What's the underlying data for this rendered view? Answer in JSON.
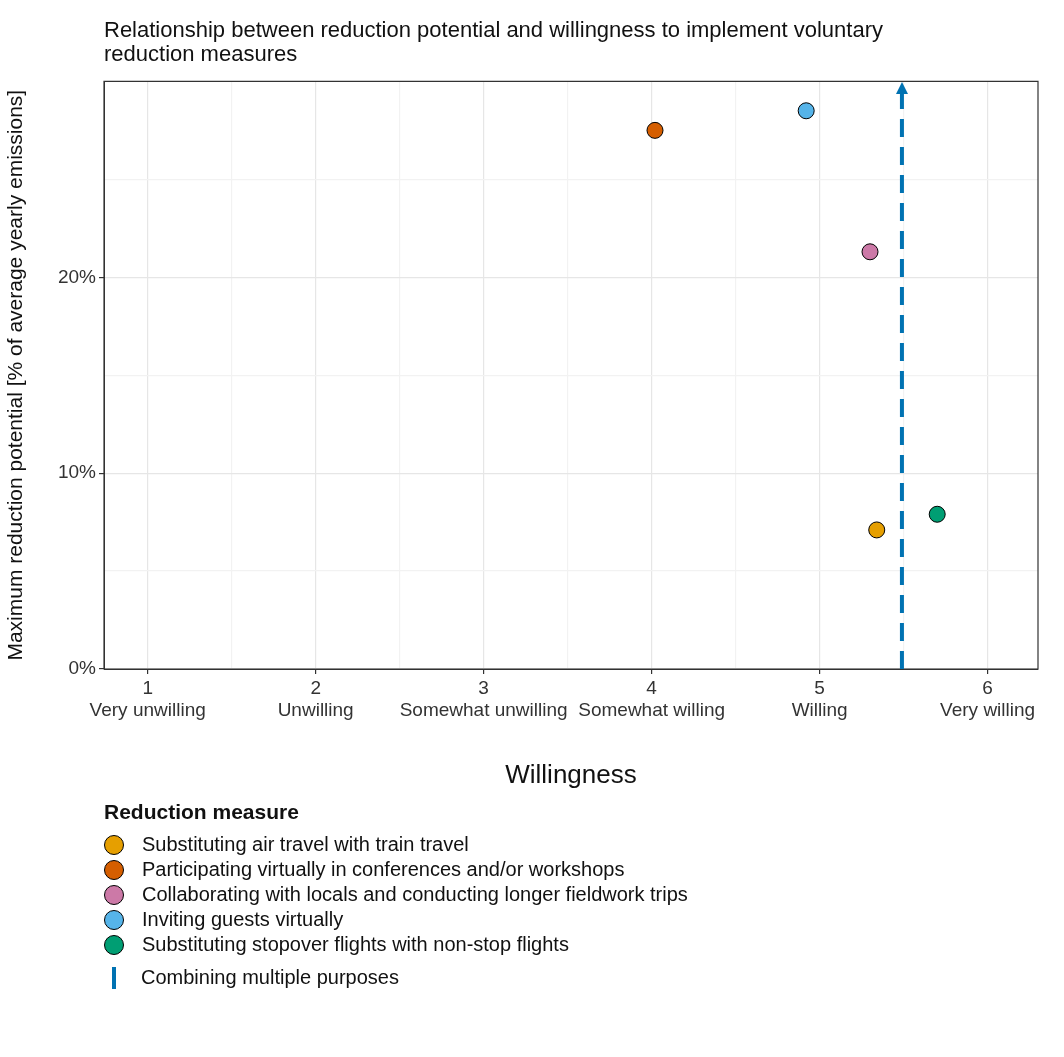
{
  "chart_data": {
    "type": "scatter",
    "title": "Relationship between reduction potential and willingness to implement voluntary reduction measures",
    "xlabel": "Willingness",
    "ylabel": "Maximum reduction potential [% of average yearly emissions]",
    "legend_title": "Reduction measure",
    "legend": "bottom",
    "grid": true,
    "marker": "circle",
    "xlim": [
      0.74,
      6.3
    ],
    "xticks": [
      {
        "value": 1,
        "label": "1\nVery unwilling"
      },
      {
        "value": 1.5,
        "label": null
      },
      {
        "value": 2,
        "label": "2\nUnwilling"
      },
      {
        "value": 2.5,
        "label": null
      },
      {
        "value": 3,
        "label": "3\nSomewhat unwilling"
      },
      {
        "value": 3.5,
        "label": null
      },
      {
        "value": 4,
        "label": "4\nSomewhat willing"
      },
      {
        "value": 4.5,
        "label": null
      },
      {
        "value": 5,
        "label": "5\nWilling"
      },
      {
        "value": 5.5,
        "label": null
      },
      {
        "value": 6,
        "label": "6\nVery willing"
      }
    ],
    "ylim": [
      0,
      30
    ],
    "yticks": [
      {
        "value": 0,
        "label": "0%"
      },
      {
        "value": 5,
        "label": null
      },
      {
        "value": 10,
        "label": "10%"
      },
      {
        "value": 15,
        "label": null
      },
      {
        "value": 20,
        "label": "20%"
      },
      {
        "value": 25,
        "label": null
      }
    ],
    "series": [
      {
        "name": "Substituting air travel with train travel",
        "color": "#e69f00",
        "x": [
          5.34
        ],
        "values": [
          7.1
        ]
      },
      {
        "name": "Participating virtually in conferences and/or workshops",
        "color": "#d55e00",
        "x": [
          4.02
        ],
        "values": [
          27.5
        ]
      },
      {
        "name": "Collaborating with locals and conducting longer fieldwork trips",
        "color": "#cc79a7",
        "x": [
          5.3
        ],
        "values": [
          21.3
        ]
      },
      {
        "name": "Inviting guests virtually",
        "color": "#56b4e9",
        "x": [
          4.92
        ],
        "values": [
          28.5
        ]
      },
      {
        "name": "Substituting stopover flights with non-stop flights",
        "color": "#009e73",
        "x": [
          5.7
        ],
        "values": [
          7.9
        ]
      }
    ],
    "ref_lines": [
      {
        "axis": "x",
        "value": 5.49,
        "label": "Combining multiple purposes",
        "color": "#0072b2",
        "line_style": "dashed"
      }
    ]
  }
}
